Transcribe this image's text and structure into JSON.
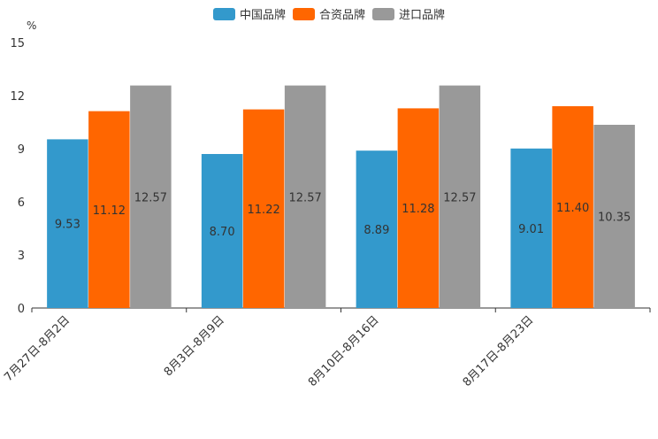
{
  "chart_data": {
    "type": "bar",
    "unit_label": "%",
    "categories": [
      "7月27日-8月2日",
      "8月3日-8月9日",
      "8月10日-8月16日",
      "8月17日-8月23日"
    ],
    "series": [
      {
        "name": "中国品牌",
        "color": "#3399cc",
        "values": [
          9.53,
          8.7,
          8.89,
          9.01
        ],
        "labels": [
          "9.53",
          "8.70",
          "8.89",
          "9.01"
        ]
      },
      {
        "name": "合资品牌",
        "color": "#ff6600",
        "values": [
          11.12,
          11.22,
          11.28,
          11.4
        ],
        "labels": [
          "11.12",
          "11.22",
          "11.28",
          "11.40"
        ]
      },
      {
        "name": "进口品牌",
        "color": "#999999",
        "values": [
          12.57,
          12.57,
          12.57,
          10.35
        ],
        "labels": [
          "12.57",
          "12.57",
          "12.57",
          "10.35"
        ]
      }
    ],
    "ylim": [
      0,
      15
    ],
    "yticks": [
      0,
      3,
      6,
      9,
      12,
      15
    ],
    "ytick_labels": [
      "0",
      "3",
      "6",
      "9",
      "12",
      "15"
    ],
    "legend_position": "top-center",
    "grid": false
  }
}
